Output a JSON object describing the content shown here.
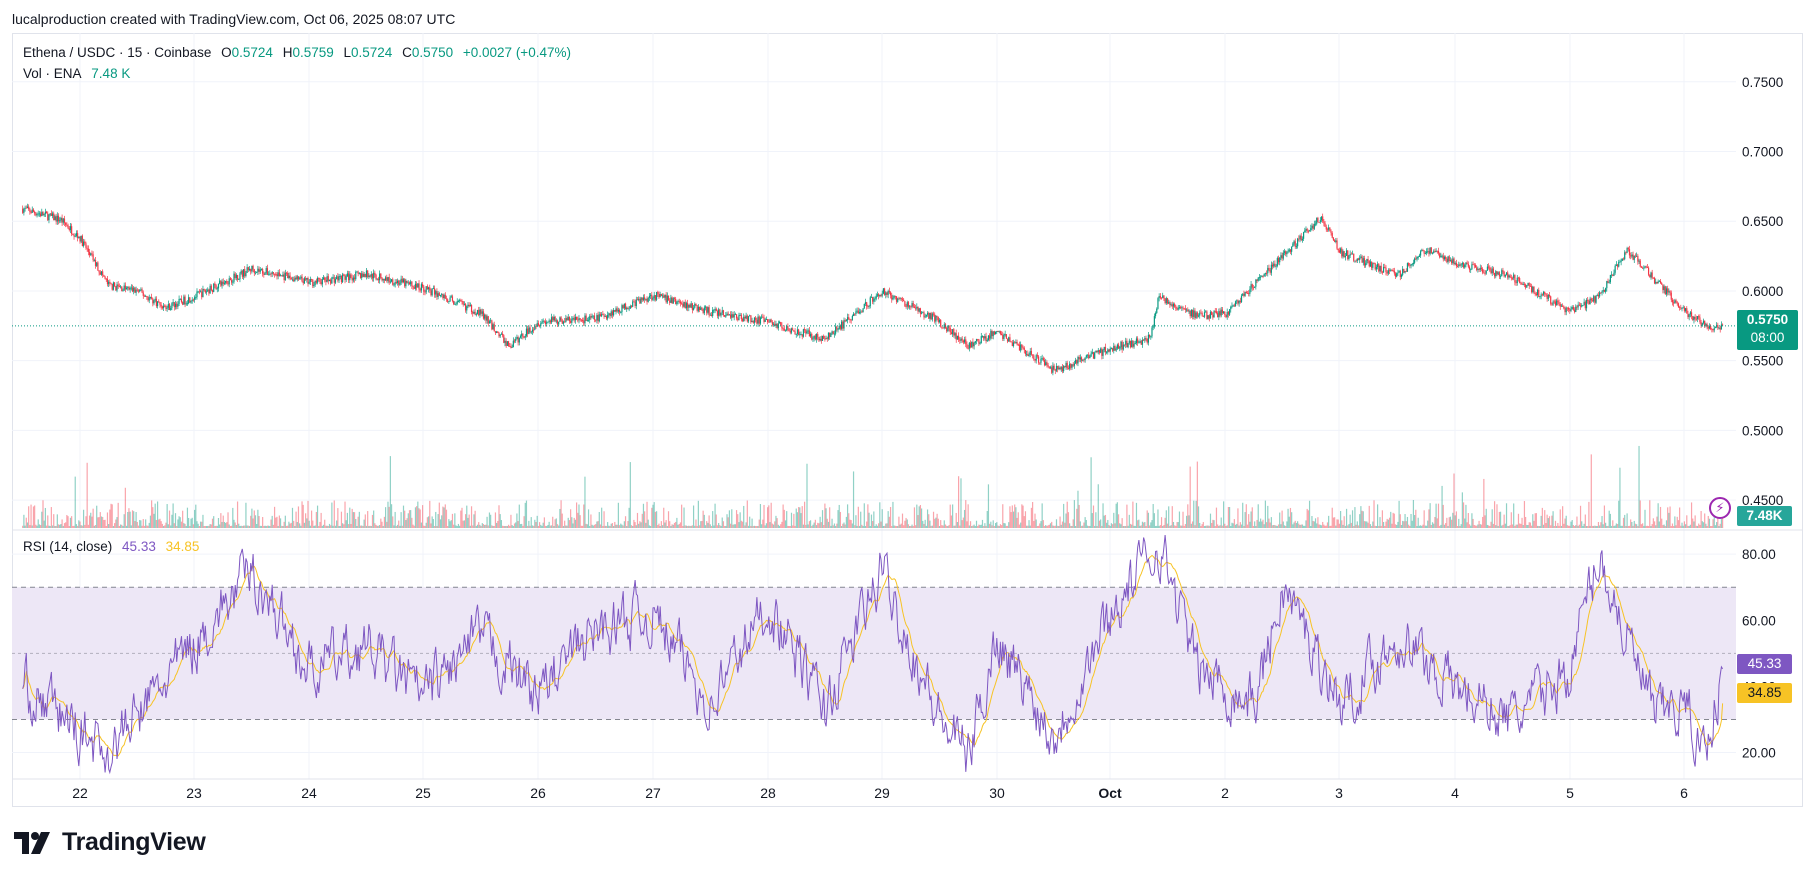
{
  "header": {
    "attribution": "lucalproduction created with TradingView.com, Oct 06, 2025 08:07 UTC"
  },
  "legend": {
    "symbol": "Ethena / USDC · 15 · Coinbase",
    "o_label": "O",
    "o_value": "0.5724",
    "h_label": "H",
    "h_value": "0.5759",
    "l_label": "L",
    "l_value": "0.5724",
    "c_label": "C",
    "c_value": "0.5750",
    "change": "+0.0027 (+0.47%)",
    "vol_label": "Vol · ENA",
    "vol_value": "7.48 K"
  },
  "rsi_legend": {
    "label": "RSI (14, close)",
    "rsi_value": "45.33",
    "sma_value": "34.85"
  },
  "price_tag": {
    "price": "0.5750",
    "countdown": "08:00"
  },
  "volume_tag": "7.48K",
  "rsi_tag": "45.33",
  "rsi_sma_tag": "34.85",
  "footer": {
    "brand": "TradingView",
    "logo_mark": "TV"
  },
  "colors": {
    "up": "#089981",
    "down": "#f23645",
    "rsi_line": "#7e57c2",
    "rsi_sma": "#f7c325",
    "rsi_band_fill": "#ede7f6",
    "grid": "#f0f3fa"
  },
  "chart_data": [
    {
      "type": "candlestick",
      "title": "Ethena / USDC · 15 · Coinbase",
      "xlabel": "",
      "ylabel": "",
      "x_ticks": [
        "22",
        "23",
        "24",
        "25",
        "26",
        "27",
        "28",
        "29",
        "30",
        "Oct",
        "2",
        "3",
        "4",
        "5",
        "6"
      ],
      "y_ticks": [
        "0.7500",
        "0.7000",
        "0.6500",
        "0.6000",
        "0.5500",
        "0.5000",
        "0.4500"
      ],
      "ylim": [
        0.43,
        0.785
      ],
      "last_price": 0.575,
      "approx_close_path": [
        {
          "x": "Sep 21 12:00",
          "y": 0.659
        },
        {
          "x": "Sep 21 20:00",
          "y": 0.651
        },
        {
          "x": "Sep 22 00:00",
          "y": 0.638
        },
        {
          "x": "Sep 22 06:00",
          "y": 0.604
        },
        {
          "x": "Sep 22 12:00",
          "y": 0.6
        },
        {
          "x": "Sep 22 18:00",
          "y": 0.588
        },
        {
          "x": "Sep 23 00:00",
          "y": 0.596
        },
        {
          "x": "Sep 23 12:00",
          "y": 0.616
        },
        {
          "x": "Sep 24 00:00",
          "y": 0.606
        },
        {
          "x": "Sep 24 12:00",
          "y": 0.612
        },
        {
          "x": "Sep 25 00:00",
          "y": 0.602
        },
        {
          "x": "Sep 25 12:00",
          "y": 0.584
        },
        {
          "x": "Sep 25 18:00",
          "y": 0.56
        },
        {
          "x": "Sep 26 00:00",
          "y": 0.578
        },
        {
          "x": "Sep 26 12:00",
          "y": 0.58
        },
        {
          "x": "Sep 27 00:00",
          "y": 0.597
        },
        {
          "x": "Sep 27 12:00",
          "y": 0.585
        },
        {
          "x": "Sep 28 00:00",
          "y": 0.578
        },
        {
          "x": "Sep 28 12:00",
          "y": 0.565
        },
        {
          "x": "Sep 29 00:00",
          "y": 0.6
        },
        {
          "x": "Sep 29 12:00",
          "y": 0.578
        },
        {
          "x": "Sep 29 18:00",
          "y": 0.56
        },
        {
          "x": "Sep 30 00:00",
          "y": 0.571
        },
        {
          "x": "Sep 30 12:00",
          "y": 0.543
        },
        {
          "x": "Oct 01 00:00",
          "y": 0.559
        },
        {
          "x": "Oct 01 08:00",
          "y": 0.566
        },
        {
          "x": "Oct 01 10:00",
          "y": 0.596
        },
        {
          "x": "Oct 01 18:00",
          "y": 0.582
        },
        {
          "x": "Oct 02 00:00",
          "y": 0.584
        },
        {
          "x": "Oct 02 12:00",
          "y": 0.625
        },
        {
          "x": "Oct 02 20:00",
          "y": 0.653
        },
        {
          "x": "Oct 03 00:00",
          "y": 0.628
        },
        {
          "x": "Oct 03 12:00",
          "y": 0.611
        },
        {
          "x": "Oct 03 18:00",
          "y": 0.63
        },
        {
          "x": "Oct 04 00:00",
          "y": 0.621
        },
        {
          "x": "Oct 04 12:00",
          "y": 0.61
        },
        {
          "x": "Oct 05 00:00",
          "y": 0.585
        },
        {
          "x": "Oct 05 06:00",
          "y": 0.595
        },
        {
          "x": "Oct 05 12:00",
          "y": 0.63
        },
        {
          "x": "Oct 05 18:00",
          "y": 0.607
        },
        {
          "x": "Oct 06 00:00",
          "y": 0.586
        },
        {
          "x": "Oct 06 06:00",
          "y": 0.572
        },
        {
          "x": "Oct 06 08:00",
          "y": 0.575
        }
      ],
      "volume_series": {
        "name": "Vol · ENA",
        "last_value": 7480
      }
    },
    {
      "type": "line",
      "title": "RSI (14, close)",
      "y_ticks": [
        "80.00",
        "60.00",
        "40.00",
        "20.00"
      ],
      "ylim": [
        12,
        87
      ],
      "bands": {
        "upper": 70,
        "middle": 50,
        "lower": 30
      },
      "series": [
        {
          "name": "RSI",
          "last_value": 45.33,
          "approx_path": [
            {
              "x": "Sep 21 12:00",
              "y": 40
            },
            {
              "x": "Sep 22 06:00",
              "y": 20
            },
            {
              "x": "Sep 22 18:00",
              "y": 42
            },
            {
              "x": "Sep 23 12:00",
              "y": 75
            },
            {
              "x": "Sep 24 00:00",
              "y": 45
            },
            {
              "x": "Sep 24 12:00",
              "y": 52
            },
            {
              "x": "Sep 25 00:00",
              "y": 37
            },
            {
              "x": "Sep 25 12:00",
              "y": 55
            },
            {
              "x": "Sep 26 00:00",
              "y": 38
            },
            {
              "x": "Sep 26 12:00",
              "y": 57
            },
            {
              "x": "Sep 27 00:00",
              "y": 62
            },
            {
              "x": "Sep 27 12:00",
              "y": 35
            },
            {
              "x": "Sep 28 00:00",
              "y": 65
            },
            {
              "x": "Sep 28 12:00",
              "y": 33
            },
            {
              "x": "Sep 29 00:00",
              "y": 75
            },
            {
              "x": "Sep 29 12:00",
              "y": 30
            },
            {
              "x": "Sep 29 18:00",
              "y": 19
            },
            {
              "x": "Sep 30 00:00",
              "y": 55
            },
            {
              "x": "Sep 30 12:00",
              "y": 25
            },
            {
              "x": "Oct 01 00:00",
              "y": 62
            },
            {
              "x": "Oct 01 10:00",
              "y": 84
            },
            {
              "x": "Oct 01 18:00",
              "y": 45
            },
            {
              "x": "Oct 02 06:00",
              "y": 35
            },
            {
              "x": "Oct 02 12:00",
              "y": 70
            },
            {
              "x": "Oct 03 00:00",
              "y": 35
            },
            {
              "x": "Oct 03 12:00",
              "y": 55
            },
            {
              "x": "Oct 04 00:00",
              "y": 40
            },
            {
              "x": "Oct 04 12:00",
              "y": 30
            },
            {
              "x": "Oct 05 00:00",
              "y": 45
            },
            {
              "x": "Oct 05 06:00",
              "y": 80
            },
            {
              "x": "Oct 05 18:00",
              "y": 30
            },
            {
              "x": "Oct 06 00:00",
              "y": 35
            },
            {
              "x": "Oct 06 04:00",
              "y": 20
            },
            {
              "x": "Oct 06 08:00",
              "y": 45.33
            }
          ]
        },
        {
          "name": "RSI-based MA",
          "last_value": 34.85
        }
      ]
    }
  ]
}
